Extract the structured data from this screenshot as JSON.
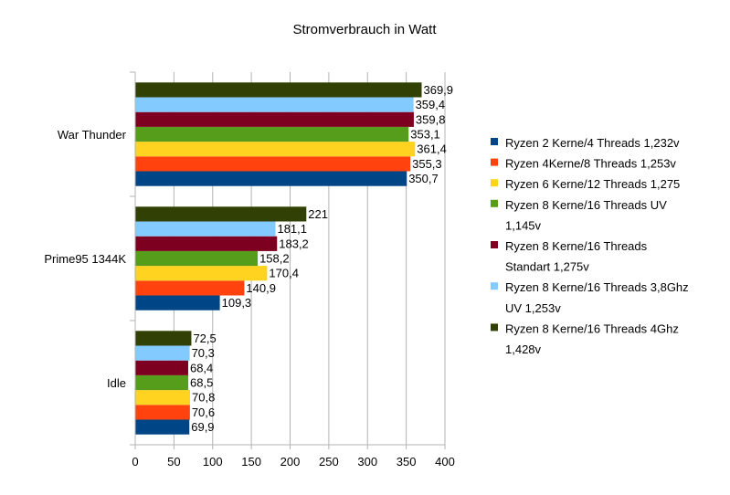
{
  "chart_data": {
    "type": "bar",
    "orientation": "horizontal",
    "title": "Stromverbrauch in Watt",
    "xlabel": "",
    "ylabel": "",
    "xlim": [
      0,
      400
    ],
    "x_ticks": [
      "0",
      "50",
      "100",
      "150",
      "200",
      "250",
      "300",
      "350",
      "400"
    ],
    "grid": true,
    "legend_position": "right",
    "categories": [
      "War Thunder",
      "Prime95 1344K",
      "Idle"
    ],
    "series": [
      {
        "name": "Ryzen 2 Kerne/4 Threads 1,232v",
        "legend_lines": [
          "Ryzen 2 Kerne/4 Threads 1,232v"
        ],
        "color": "#004586",
        "values": [
          350.7,
          109.3,
          69.9
        ],
        "labels": [
          "350,7",
          "109,3",
          "69,9"
        ]
      },
      {
        "name": "Ryzen 4Kerne/8 Threads 1,253v",
        "legend_lines": [
          "Ryzen 4Kerne/8 Threads 1,253v"
        ],
        "color": "#ff420e",
        "values": [
          355.3,
          140.9,
          70.6
        ],
        "labels": [
          "355,3",
          "140,9",
          "70,6"
        ]
      },
      {
        "name": "Ryzen 6 Kerne/12 Threads 1,275",
        "legend_lines": [
          "Ryzen 6 Kerne/12 Threads 1,275"
        ],
        "color": "#ffd320",
        "values": [
          361.4,
          170.4,
          70.8
        ],
        "labels": [
          "361,4",
          "170,4",
          "70,8"
        ]
      },
      {
        "name": "Ryzen 8 Kerne/16 Threads UV 1,145v",
        "legend_lines": [
          "Ryzen 8 Kerne/16 Threads UV",
          "1,145v"
        ],
        "color": "#579d1c",
        "values": [
          353.1,
          158.2,
          68.5
        ],
        "labels": [
          "353,1",
          "158,2",
          "68,5"
        ]
      },
      {
        "name": "Ryzen 8 Kerne/16 Threads Standart 1,275v",
        "legend_lines": [
          "Ryzen 8 Kerne/16 Threads",
          "Standart 1,275v"
        ],
        "color": "#7e0021",
        "values": [
          359.8,
          183.2,
          68.4
        ],
        "labels": [
          "359,8",
          "183,2",
          "68,4"
        ]
      },
      {
        "name": "Ryzen 8 Kerne/16 Threads 3,8Ghz UV 1,253v",
        "legend_lines": [
          "Ryzen 8 Kerne/16 Threads 3,8Ghz",
          "UV 1,253v"
        ],
        "color": "#83caff",
        "values": [
          359.4,
          181.1,
          70.3
        ],
        "labels": [
          "359,4",
          "181,1",
          "70,3"
        ]
      },
      {
        "name": "Ryzen 8 Kerne/16 Threads 4Ghz 1,428v",
        "legend_lines": [
          "Ryzen 8 Kerne/16 Threads 4Ghz",
          "1,428v"
        ],
        "color": "#314004",
        "values": [
          369.9,
          221,
          72.5
        ],
        "labels": [
          "369,9",
          "221",
          "72,5"
        ]
      }
    ]
  }
}
